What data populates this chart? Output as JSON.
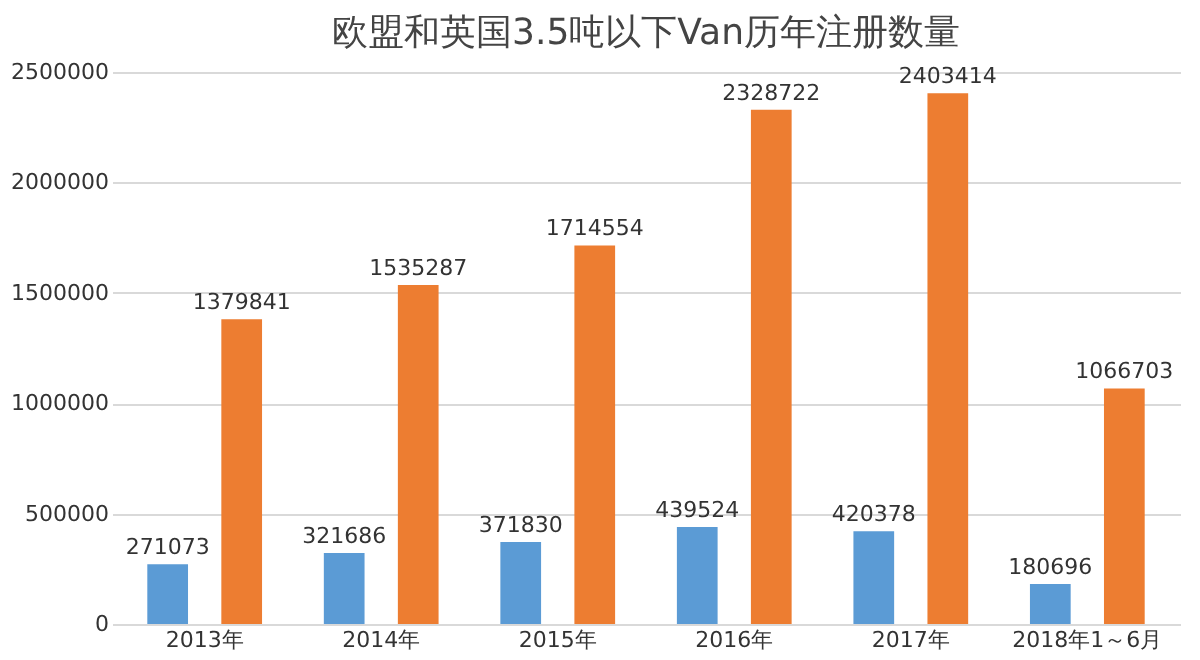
{
  "chart_data": {
    "type": "bar",
    "title": "欧盟和英国3.5吨以下Van历年注册数量",
    "categories": [
      "2013年",
      "2014年",
      "2015年",
      "2016年",
      "2017年",
      "2018年1～6月"
    ],
    "series": [
      {
        "color": "#5b9bd5",
        "values": [
          271073,
          321686,
          371830,
          439524,
          420378,
          180696
        ]
      },
      {
        "color": "#ed7d31",
        "values": [
          1379841,
          1535287,
          1714554,
          2328722,
          2403414,
          1066703
        ]
      }
    ],
    "ylim": [
      0,
      2500000
    ],
    "yticks": [
      0,
      500000,
      1000000,
      1500000,
      2000000,
      2500000
    ],
    "grid": "y",
    "data_labels": true,
    "legend": false
  }
}
